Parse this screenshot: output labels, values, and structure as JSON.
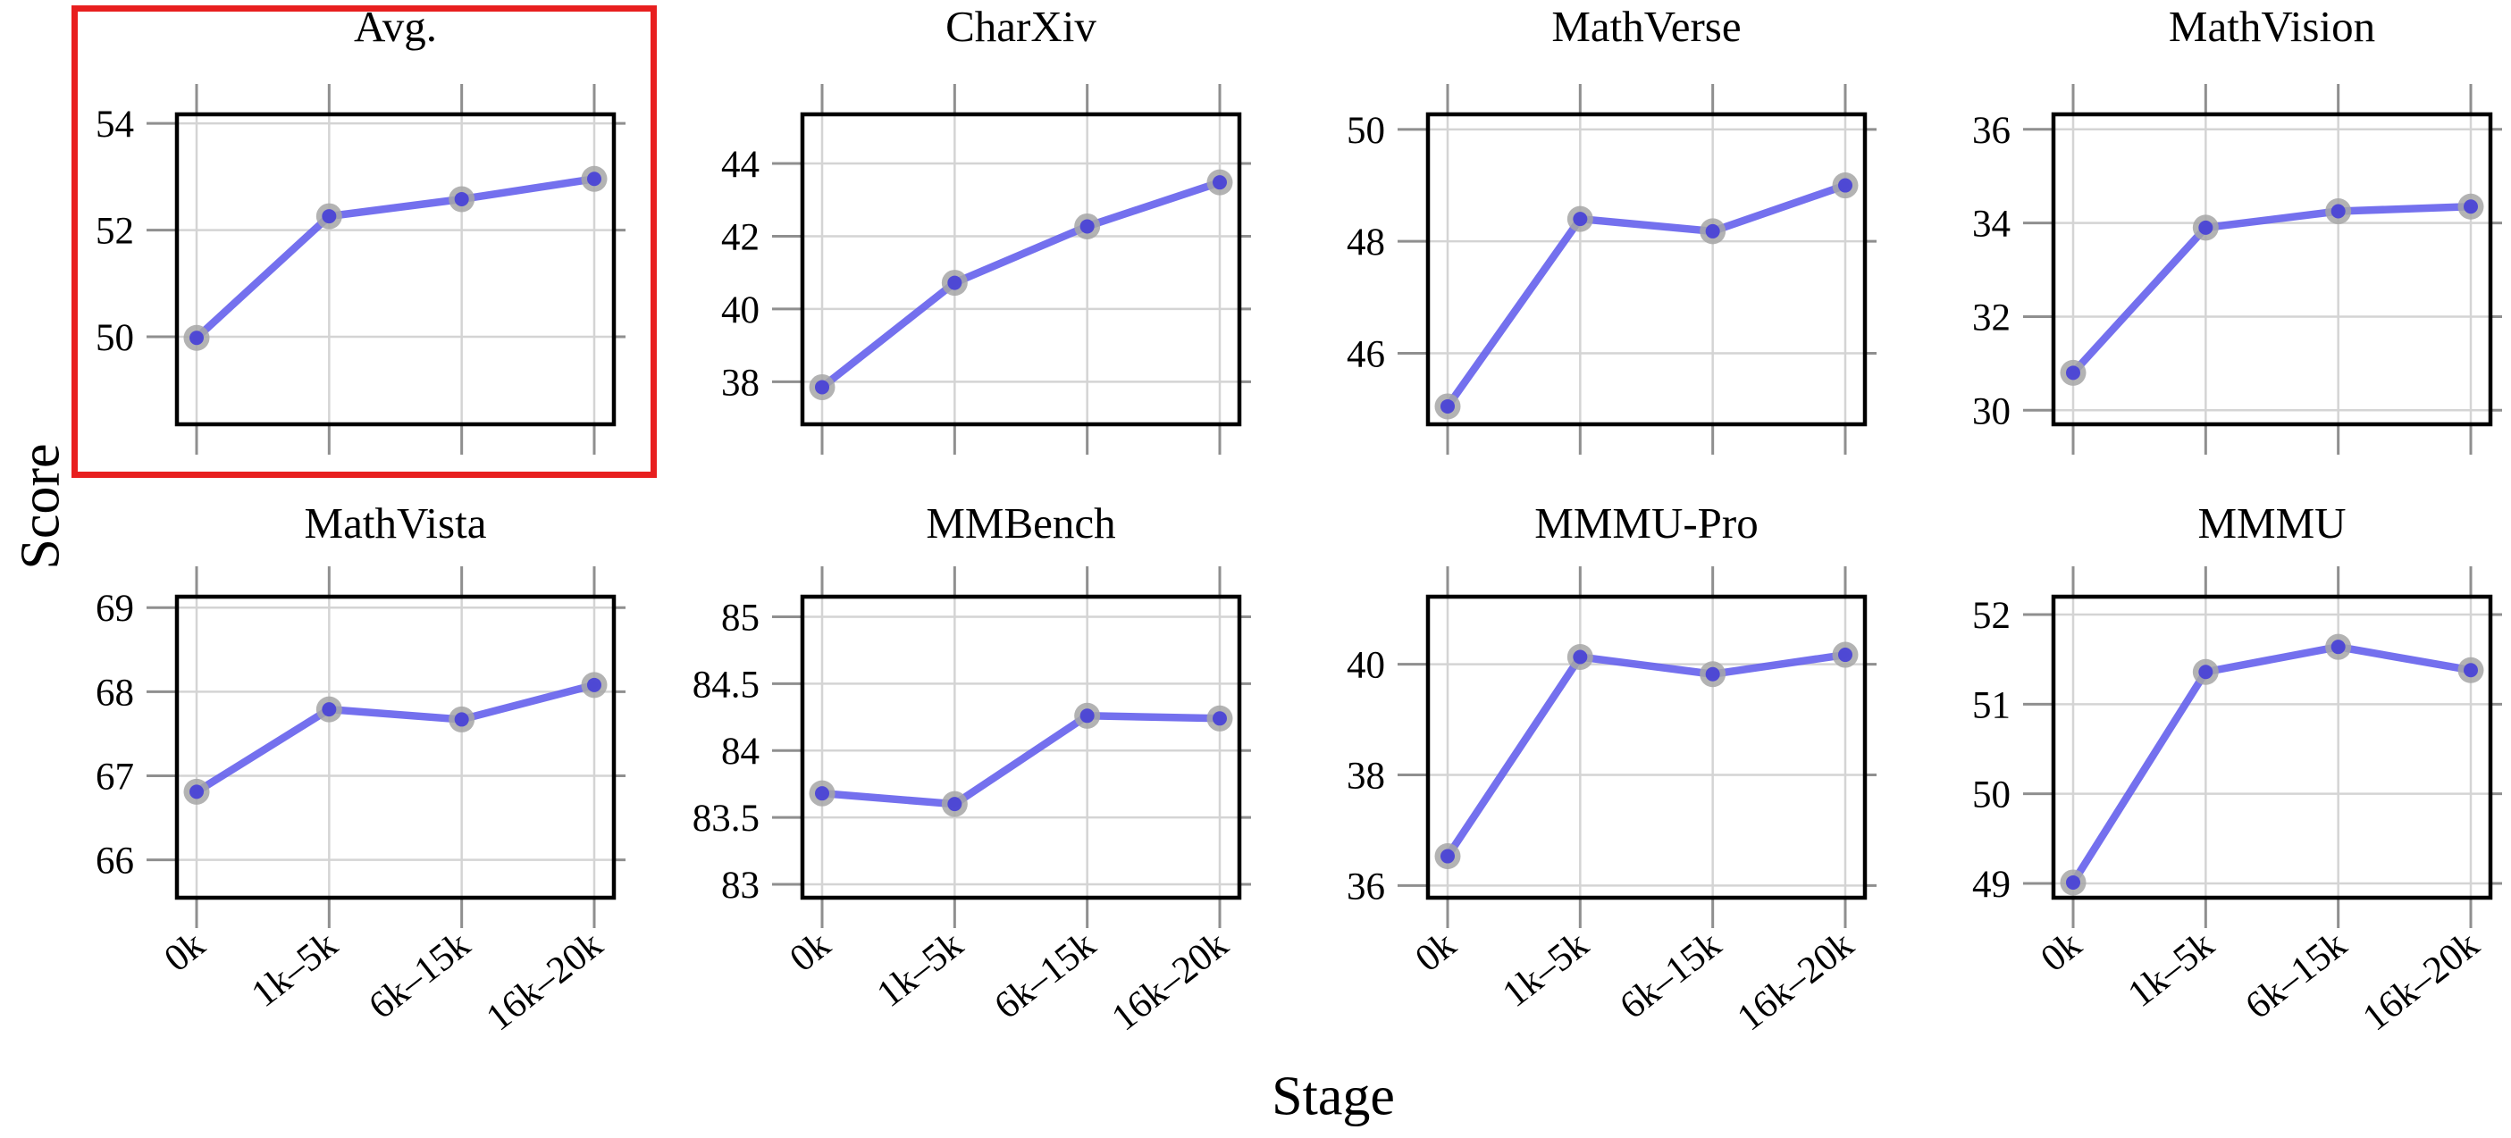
{
  "figure": {
    "ylabel": "Score",
    "xlabel": "Stage",
    "colors": {
      "line": "#6561ec",
      "marker_inner": "#4a43d6",
      "marker_halo": "#a6a6a6",
      "grid": "#d4d4d4",
      "tick": "#8f8f8f",
      "frame": "#000000",
      "highlight": "#e81f1f"
    }
  },
  "chart_data": [
    {
      "type": "line",
      "title": "Avg.",
      "highlighted": true,
      "categories": [
        "0k",
        "1k–5k",
        "6k–15k",
        "16k–20k"
      ],
      "values": [
        49.98,
        52.26,
        52.58,
        52.96
      ],
      "yticks": [
        50,
        52,
        54
      ],
      "ylim": [
        48.36,
        54.17
      ],
      "xlabel": "Stage",
      "ylabel": "Score",
      "grid": true,
      "legend": "none"
    },
    {
      "type": "line",
      "title": "CharXiv",
      "highlighted": false,
      "categories": [
        "0k",
        "1k–5k",
        "6k–15k",
        "16k–20k"
      ],
      "values": [
        37.85,
        40.72,
        42.27,
        43.48
      ],
      "yticks": [
        38,
        40,
        42,
        44
      ],
      "ylim": [
        36.83,
        45.35
      ],
      "xlabel": "Stage",
      "ylabel": "Score",
      "grid": true,
      "legend": "none"
    },
    {
      "type": "line",
      "title": "MathVerse",
      "highlighted": false,
      "categories": [
        "0k",
        "1k–5k",
        "6k–15k",
        "16k–20k"
      ],
      "values": [
        45.05,
        48.4,
        48.18,
        49.0
      ],
      "yticks": [
        46,
        48,
        50
      ],
      "ylim": [
        44.73,
        50.27
      ],
      "xlabel": "Stage",
      "ylabel": "Score",
      "grid": true,
      "legend": "none"
    },
    {
      "type": "line",
      "title": "MathVision",
      "highlighted": false,
      "categories": [
        "0k",
        "1k–5k",
        "6k–15k",
        "16k–20k"
      ],
      "values": [
        30.8,
        33.9,
        34.25,
        34.35
      ],
      "yticks": [
        30,
        32,
        34,
        36
      ],
      "ylim": [
        29.7,
        36.32
      ],
      "xlabel": "Stage",
      "ylabel": "Score",
      "grid": true,
      "legend": "none"
    },
    {
      "type": "line",
      "title": "MathVista",
      "highlighted": false,
      "categories": [
        "0k",
        "1k–5k",
        "6k–15k",
        "16k–20k"
      ],
      "values": [
        66.81,
        67.79,
        67.67,
        68.08
      ],
      "yticks": [
        66,
        67,
        68,
        69
      ],
      "ylim": [
        65.55,
        69.13
      ],
      "xlabel": "Stage",
      "ylabel": "Score",
      "grid": true,
      "legend": "none"
    },
    {
      "type": "line",
      "title": "MMBench",
      "highlighted": false,
      "categories": [
        "0k",
        "1k–5k",
        "6k–15k",
        "16k–20k"
      ],
      "values": [
        83.68,
        83.6,
        84.26,
        84.24
      ],
      "yticks": [
        83,
        83.5,
        84,
        84.5,
        85
      ],
      "ylim": [
        82.9,
        85.15
      ],
      "xlabel": "Stage",
      "ylabel": "Score",
      "grid": true,
      "legend": "none"
    },
    {
      "type": "line",
      "title": "MMMU-Pro",
      "highlighted": false,
      "categories": [
        "0k",
        "1k–5k",
        "6k–15k",
        "16k–20k"
      ],
      "values": [
        36.53,
        40.13,
        39.82,
        40.17
      ],
      "yticks": [
        36,
        38,
        40
      ],
      "ylim": [
        35.78,
        41.22
      ],
      "xlabel": "Stage",
      "ylabel": "Score",
      "grid": true,
      "legend": "none"
    },
    {
      "type": "line",
      "title": "MMMU",
      "highlighted": false,
      "categories": [
        "0k",
        "1k–5k",
        "6k–15k",
        "16k–20k"
      ],
      "values": [
        49.01,
        51.36,
        51.64,
        51.38
      ],
      "yticks": [
        49,
        50,
        51,
        52
      ],
      "ylim": [
        48.84,
        52.2
      ],
      "xlabel": "Stage",
      "ylabel": "Score",
      "grid": true,
      "legend": "none"
    }
  ]
}
